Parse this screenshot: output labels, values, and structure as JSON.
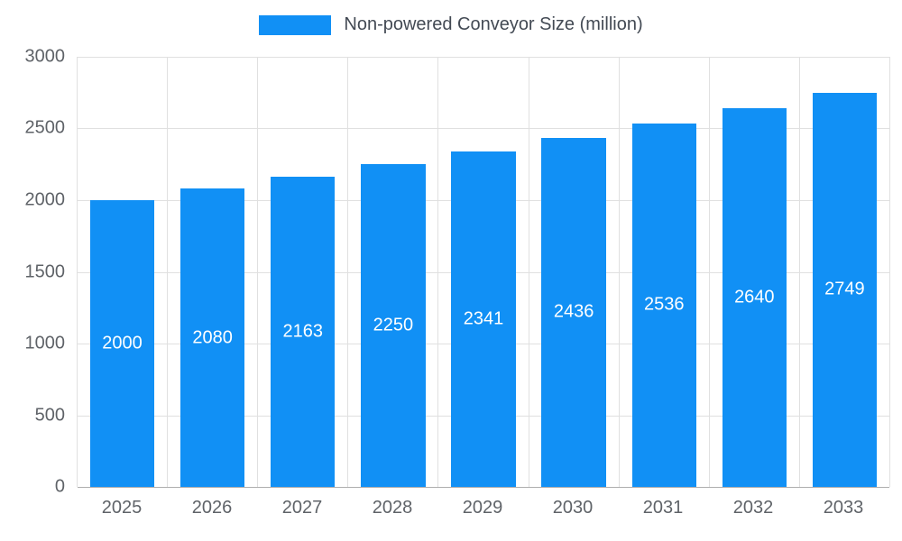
{
  "chart_data": {
    "type": "bar",
    "title": "Non-powered Conveyor Size (million)",
    "categories": [
      "2025",
      "2026",
      "2027",
      "2028",
      "2029",
      "2030",
      "2031",
      "2032",
      "2033"
    ],
    "series": [
      {
        "name": "Non-powered Conveyor Size (million)",
        "values": [
          2000,
          2080,
          2163,
          2250,
          2341,
          2436,
          2536,
          2640,
          2749
        ]
      }
    ],
    "data_labels": [
      "2000",
      "2080",
      "2163",
      "2250",
      "2341",
      "2436",
      "2536",
      "2640",
      "2749"
    ],
    "xlabel": "",
    "ylabel": "",
    "ylim": [
      0,
      3000
    ],
    "yticks": [
      0,
      500,
      1000,
      1500,
      2000,
      2500,
      3000
    ],
    "ytick_labels": [
      "0",
      "500",
      "1000",
      "1500",
      "2000",
      "2500",
      "3000"
    ],
    "grid": true,
    "legend_position": "top-center",
    "colors": {
      "bar": "#1190f5",
      "bar_label_text": "#ffffff",
      "axis_text": "#5f6368",
      "legend_text": "#434a54",
      "gridline": "#e0e0e0",
      "zero_line": "#aeaeae",
      "background": "#ffffff"
    }
  }
}
